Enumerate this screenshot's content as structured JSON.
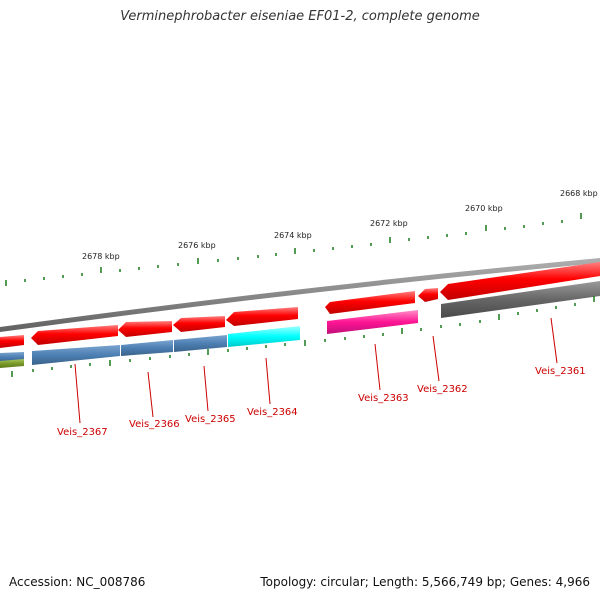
{
  "title": "Verminephrobacter eiseniae EF01-2, complete genome",
  "footer": {
    "accession": "Accession: NC_008786",
    "summary": "Topology: circular; Length: 5,566,749 bp; Genes: 4,966"
  },
  "colors": {
    "backbone": "#8c8c8c",
    "cds": "#ff0000",
    "tick": "#1a7a1a",
    "label": "#cc0000",
    "leader": "#cc0000"
  },
  "ticks": [
    {
      "label": "2678 kbp"
    },
    {
      "label": "2676 kbp"
    },
    {
      "label": "2674 kbp"
    },
    {
      "label": "2672 kbp"
    },
    {
      "label": "2670 kbp"
    },
    {
      "label": "2668 kbp"
    }
  ],
  "genes": [
    {
      "label": "Veis_2367",
      "color": "#4d7fb3"
    },
    {
      "label": "Veis_2366",
      "color": "#4d7fb3"
    },
    {
      "label": "Veis_2365",
      "color": "#4d7fb3"
    },
    {
      "label": "Veis_2364",
      "color": "#00ffff"
    },
    {
      "label": "Veis_2363",
      "color": "#ff1493"
    },
    {
      "label": "Veis_2362",
      "color": "#ff0000"
    },
    {
      "label": "Veis_2361",
      "color": "#666666"
    }
  ]
}
